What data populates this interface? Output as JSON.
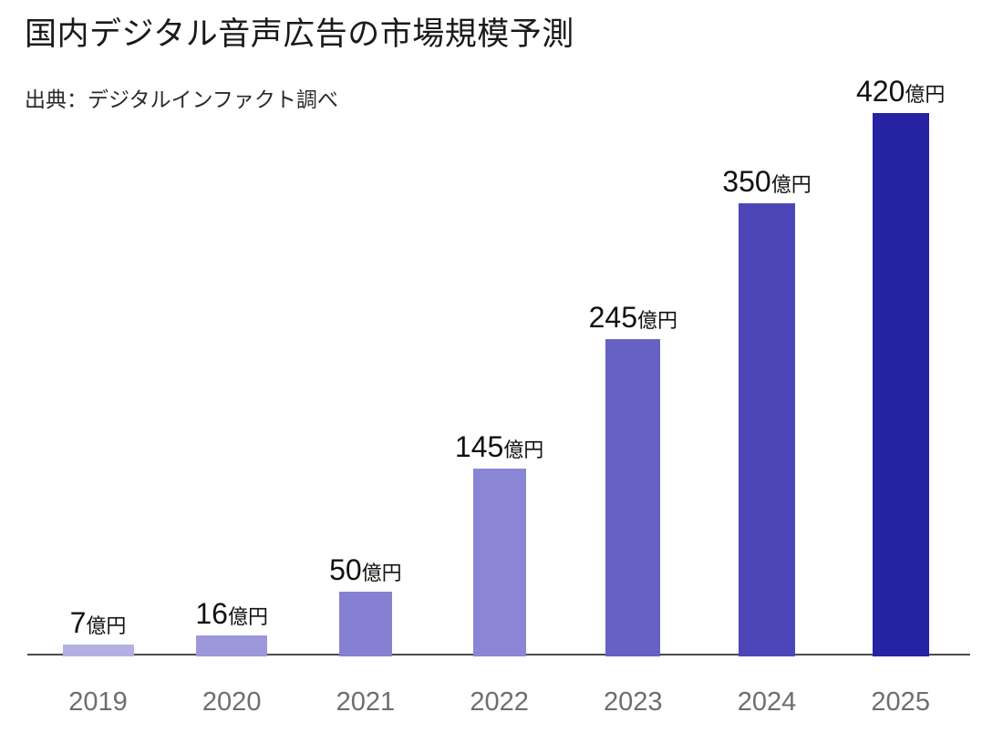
{
  "chart_data": {
    "type": "bar",
    "title": "国内デジタル音声広告の市場規模予測",
    "source": "出典：デジタルインファクト調べ",
    "unit_suffix": "億円",
    "categories": [
      "2019",
      "2020",
      "2021",
      "2022",
      "2023",
      "2024",
      "2025"
    ],
    "values": [
      7,
      16,
      50,
      145,
      245,
      350,
      420
    ],
    "value_labels": [
      "7億円",
      "16億円",
      "50億円",
      "145億円",
      "245億円",
      "350億円",
      "420億円"
    ],
    "bar_colors": [
      "#b4afe1",
      "#9d97db",
      "#8680d2",
      "#8b85d6",
      "#6761c6",
      "#4d46b9",
      "#2522a4"
    ],
    "ylim": [
      0,
      420
    ],
    "grid": false,
    "legend": "none",
    "axis_line_color": "#4a4a4a",
    "x_label_color": "#6e6e6e",
    "label_text_color": "#111111"
  }
}
